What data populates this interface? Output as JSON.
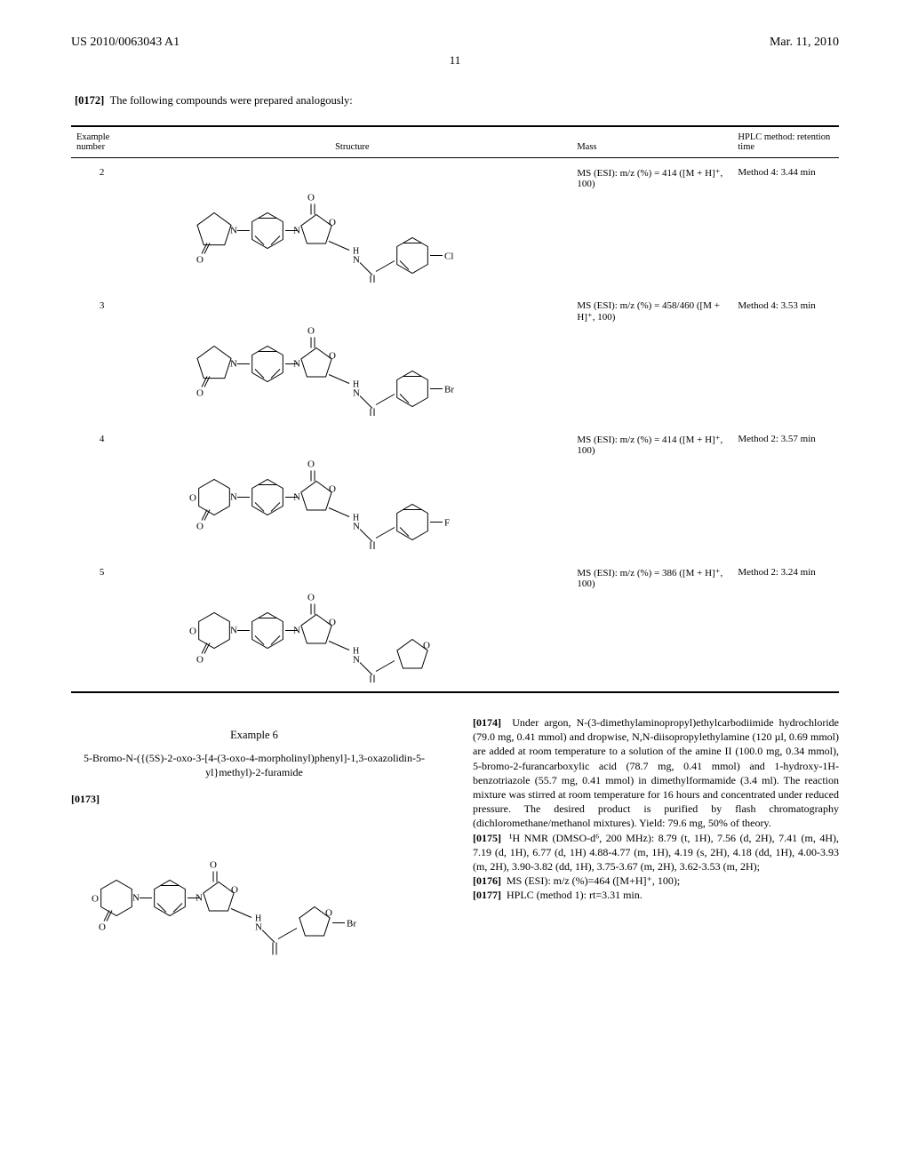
{
  "header": {
    "pub_no": "US 2010/0063043 A1",
    "pub_date": "Mar. 11, 2010",
    "page_num": "11"
  },
  "lead": {
    "num": "[0172]",
    "text": "The following compounds were prepared analogously:"
  },
  "table": {
    "columns": {
      "ex_no": "Example number",
      "structure": "Structure",
      "mass": "Mass",
      "hplc": "HPLC method: retention time"
    },
    "rows": [
      {
        "ex_no": "2",
        "mass": "MS (ESI): m/z (%) = 414 ([M + H]⁺, 100)",
        "hplc": "Method 4: 3.44 min",
        "halogen": "Cl",
        "left_ring": "pyrrolidinone",
        "right_ring": "phenyl"
      },
      {
        "ex_no": "3",
        "mass": "MS (ESI): m/z (%) = 458/460 ([M + H]⁺, 100)",
        "hplc": "Method 4: 3.53 min",
        "halogen": "Br",
        "left_ring": "pyrrolidinone",
        "right_ring": "phenyl"
      },
      {
        "ex_no": "4",
        "mass": "MS (ESI): m/z (%) = 414 ([M + H]⁺, 100)",
        "hplc": "Method 2: 3.57 min",
        "halogen": "F",
        "left_ring": "morpholinone",
        "right_ring": "phenyl"
      },
      {
        "ex_no": "5",
        "mass": "MS (ESI): m/z (%) = 386 ([M + H]⁺, 100)",
        "hplc": "Method 2: 3.24 min",
        "halogen": "",
        "left_ring": "morpholinone",
        "right_ring": "furan"
      }
    ]
  },
  "example6": {
    "heading": "Example 6",
    "name": "5-Bromo-N-({(5S)-2-oxo-3-[4-(3-oxo-4-morpholinyl)phenyl]-1,3-oxazolidin-5-yl}methyl)-2-furamide",
    "para_num": "[0173]",
    "halogen": "Br"
  },
  "right_col": {
    "p174_num": "[0174]",
    "p174_text": "Under argon, N-(3-dimethylaminopropyl)ethylcarbodiimide hydrochloride (79.0 mg, 0.41 mmol) and dropwise, N,N-diisopropylethylamine (120 µl, 0.69 mmol) are added at room temperature to a solution of the amine II (100.0 mg, 0.34 mmol), 5-bromo-2-furancarboxylic acid (78.7 mg, 0.41 mmol) and 1-hydroxy-1H-benzotriazole (55.7 mg, 0.41 mmol) in dimethylformamide (3.4 ml). The reaction mixture was stirred at room temperature for 16 hours and concentrated under reduced pressure. The desired product is purified by flash chromatography (dichloromethane/methanol mixtures). Yield: 79.6 mg, 50% of theory.",
    "p175_num": "[0175]",
    "p175_text": "¹H NMR (DMSO-d⁶, 200 MHz): 8.79 (t, 1H), 7.56 (d, 2H), 7.41 (m, 4H), 7.19 (d, 1H), 6.77 (d, 1H) 4.88-4.77 (m, 1H), 4.19 (s, 2H), 4.18 (dd, 1H), 4.00-3.93 (m, 2H), 3.90-3.82 (dd, 1H), 3.75-3.67 (m, 2H), 3.62-3.53 (m, 2H);",
    "p176_num": "[0176]",
    "p176_text": "MS (ESI): m/z (%)=464 ([M+H]⁺, 100);",
    "p177_num": "[0177]",
    "p177_text": "HPLC (method 1): rt=3.31 min."
  },
  "style": {
    "stroke": "#000000",
    "stroke_width": 1.0,
    "font_size_atom": 11
  }
}
